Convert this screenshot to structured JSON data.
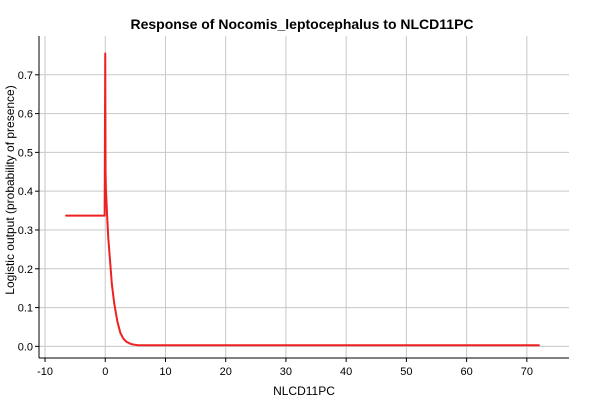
{
  "chart_data": {
    "type": "line",
    "title": "Response of Nocomis_leptocephalus to NLCD11PC",
    "xlabel": "NLCD11PC",
    "ylabel": "Logistic output (probability of presence)",
    "xlim": [
      -11,
      77
    ],
    "ylim": [
      -0.03,
      0.8
    ],
    "xticks": [
      -10,
      0,
      10,
      20,
      30,
      40,
      50,
      60,
      70
    ],
    "yticks": [
      0.0,
      0.1,
      0.2,
      0.3,
      0.4,
      0.5,
      0.6,
      0.7
    ],
    "xtick_labels": [
      "-10",
      "0",
      "10",
      "20",
      "30",
      "40",
      "50",
      "60",
      "70"
    ],
    "ytick_labels": [
      "0.0",
      "0.1",
      "0.2",
      "0.3",
      "0.4",
      "0.5",
      "0.6",
      "0.7"
    ],
    "grid": true,
    "series": [
      {
        "color": "#ee2020",
        "x": [
          -6.5,
          -0.1,
          0.0,
          0.05,
          0.1,
          0.3,
          0.5,
          0.8,
          1.1,
          1.5,
          2.0,
          2.5,
          3.0,
          3.5,
          4.0,
          4.5,
          5.0,
          5.5,
          6.0,
          10,
          20,
          30,
          40,
          50,
          60,
          72
        ],
        "y": [
          0.337,
          0.337,
          0.755,
          0.45,
          0.41,
          0.34,
          0.28,
          0.22,
          0.16,
          0.11,
          0.065,
          0.035,
          0.02,
          0.012,
          0.008,
          0.005,
          0.004,
          0.003,
          0.003,
          0.003,
          0.003,
          0.003,
          0.003,
          0.003,
          0.003,
          0.003
        ]
      }
    ]
  }
}
